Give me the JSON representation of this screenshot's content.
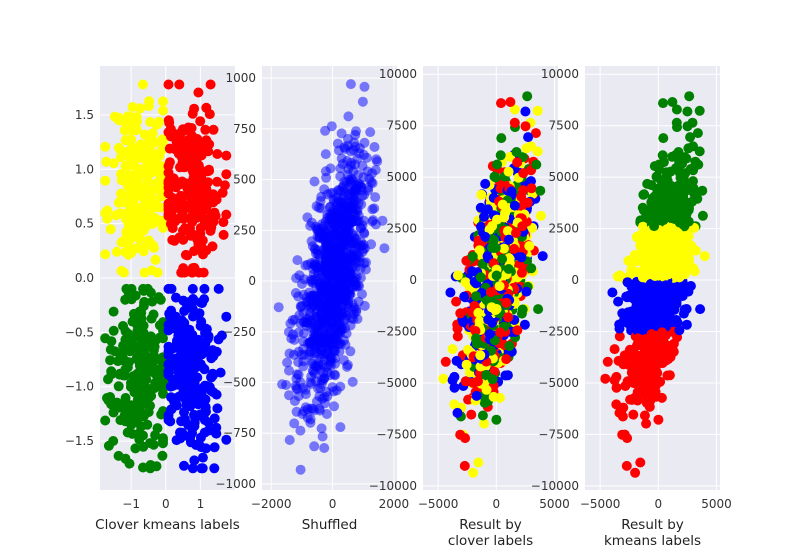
{
  "figure": {
    "colors": {
      "yellow": "#ffff00",
      "red": "#ff0000",
      "green": "#008000",
      "blue": "#0000ff"
    }
  },
  "chart_data": [
    {
      "type": "scatter",
      "xlabel": "Clover kmeans labels",
      "xlim": [
        -1.9,
        2.0
      ],
      "ylim": [
        -1.95,
        1.95
      ],
      "xticks": [
        -1,
        0,
        1
      ],
      "yticks": [
        -1.5,
        -1.0,
        -0.5,
        0.0,
        0.5,
        1.0,
        1.5
      ],
      "ytick_labels": [
        "-1.5",
        "-1.0",
        "-0.5",
        "0.0",
        "0.5",
        "1.0",
        "1.5"
      ],
      "grid": true,
      "clusters": [
        {
          "color": "yellow",
          "center": [
            -0.75,
            0.87
          ],
          "spread": [
            0.42,
            0.38
          ],
          "n": 240
        },
        {
          "color": "red",
          "center": [
            0.75,
            0.87
          ],
          "spread": [
            0.42,
            0.38
          ],
          "n": 240
        },
        {
          "color": "green",
          "center": [
            -0.75,
            -0.87
          ],
          "spread": [
            0.42,
            0.38
          ],
          "n": 240
        },
        {
          "color": "blue",
          "center": [
            0.75,
            -0.87
          ],
          "spread": [
            0.42,
            0.38
          ],
          "n": 240
        }
      ]
    },
    {
      "type": "scatter",
      "xlabel": "Shuffled",
      "xlim": [
        -2300,
        2100
      ],
      "ylim": [
        -1030,
        1060
      ],
      "xticks": [
        -2000,
        0,
        2000
      ],
      "yticks": [
        -1000,
        -750,
        -500,
        -250,
        0,
        250,
        500,
        750,
        1000
      ],
      "grid": true,
      "point_color": "blue",
      "point_alpha": 0.5,
      "cloud": {
        "center": [
          0,
          0
        ],
        "spread": [
          560,
          300
        ],
        "correlation": 0.55,
        "n": 1000
      }
    },
    {
      "type": "scatter",
      "xlabel": "Result by\nclover labels",
      "xlim": [
        -6300,
        5300
      ],
      "ylim": [
        -10200,
        10400
      ],
      "xticks": [
        -5000,
        0,
        5000
      ],
      "yticks": [
        -10000,
        -7500,
        -5000,
        -2500,
        0,
        2500,
        5000,
        7500,
        10000
      ],
      "grid": true,
      "colors_mixed": [
        "yellow",
        "red",
        "green",
        "blue"
      ],
      "cloud": {
        "center": [
          0,
          0
        ],
        "spread": [
          1400,
          2900
        ],
        "correlation": 0.55,
        "n": 1000
      }
    },
    {
      "type": "scatter",
      "xlabel": "Result by\nkmeans labels",
      "xlim": [
        -6300,
        5300
      ],
      "ylim": [
        -10200,
        10400
      ],
      "xticks": [
        -5000,
        0,
        5000
      ],
      "yticks": [
        -10000,
        -7500,
        -5000,
        -2500,
        0,
        2500,
        5000,
        7500,
        10000
      ],
      "grid": true,
      "clusters_by_y": [
        {
          "color": "green",
          "y_min": 2600,
          "y_max": 10000
        },
        {
          "color": "yellow",
          "y_min": 0,
          "y_max": 2600
        },
        {
          "color": "blue",
          "y_min": -2500,
          "y_max": 0
        },
        {
          "color": "red",
          "y_min": -10000,
          "y_max": -2500
        }
      ],
      "cloud": {
        "center": [
          0,
          0
        ],
        "spread": [
          1400,
          2900
        ],
        "correlation": 0.55,
        "n": 1000
      }
    }
  ]
}
